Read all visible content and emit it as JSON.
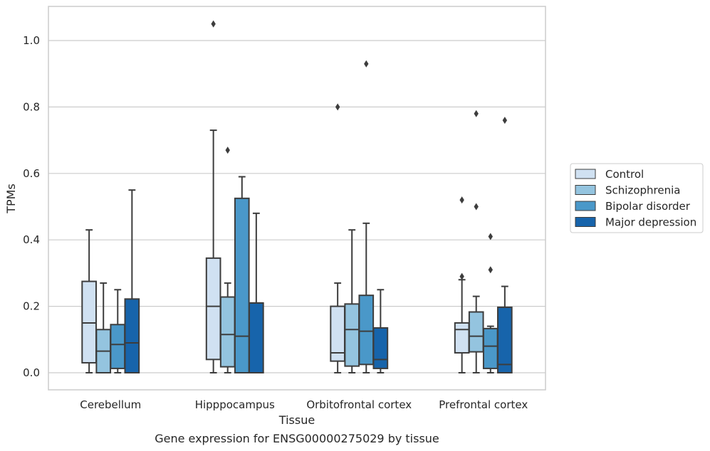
{
  "caption": "Gene expression for ENSG00000275029 by tissue",
  "chart_data": {
    "type": "boxplot",
    "xlabel": "Tissue",
    "ylabel": "TPMs",
    "ylim": [
      -0.05,
      1.1
    ],
    "yticks": [
      0.0,
      0.2,
      0.4,
      0.6,
      0.8,
      1.0
    ],
    "ytick_labels": [
      "0.0",
      "0.2",
      "0.4",
      "0.6",
      "0.8",
      "1.0"
    ],
    "grid": "horizontal",
    "legend_position": "right",
    "categories": [
      "Cerebellum",
      "Hipppocampus",
      "Orbitofrontal cortex",
      "Prefrontal cortex"
    ],
    "series": [
      {
        "name": "Control",
        "color": "#d0e1f2",
        "boxes": [
          {
            "whislo": 0.0,
            "q1": 0.03,
            "med": 0.15,
            "q3": 0.275,
            "whishi": 0.43,
            "fliers": []
          },
          {
            "whislo": 0.0,
            "q1": 0.04,
            "med": 0.2,
            "q3": 0.345,
            "whishi": 0.73,
            "fliers": [
              1.05
            ]
          },
          {
            "whislo": 0.0,
            "q1": 0.035,
            "med": 0.06,
            "q3": 0.2,
            "whishi": 0.27,
            "fliers": [
              0.8
            ]
          },
          {
            "whislo": 0.0,
            "q1": 0.06,
            "med": 0.13,
            "q3": 0.15,
            "whishi": 0.28,
            "fliers": [
              0.29,
              0.52
            ]
          }
        ]
      },
      {
        "name": "Schizophrenia",
        "color": "#94c4df",
        "boxes": [
          {
            "whislo": 0.0,
            "q1": 0.0,
            "med": 0.065,
            "q3": 0.13,
            "whishi": 0.27,
            "fliers": []
          },
          {
            "whislo": 0.0,
            "q1": 0.018,
            "med": 0.115,
            "q3": 0.228,
            "whishi": 0.27,
            "fliers": [
              0.67
            ]
          },
          {
            "whislo": 0.0,
            "q1": 0.02,
            "med": 0.13,
            "q3": 0.207,
            "whishi": 0.43,
            "fliers": []
          },
          {
            "whislo": 0.0,
            "q1": 0.063,
            "med": 0.11,
            "q3": 0.183,
            "whishi": 0.23,
            "fliers": [
              0.5,
              0.78
            ]
          }
        ]
      },
      {
        "name": "Bipolar disorder",
        "color": "#4a98c9",
        "boxes": [
          {
            "whislo": 0.0,
            "q1": 0.013,
            "med": 0.085,
            "q3": 0.145,
            "whishi": 0.25,
            "fliers": []
          },
          {
            "whislo": 0.0,
            "q1": 0.0,
            "med": 0.11,
            "q3": 0.525,
            "whishi": 0.59,
            "fliers": []
          },
          {
            "whislo": 0.0,
            "q1": 0.025,
            "med": 0.125,
            "q3": 0.233,
            "whishi": 0.45,
            "fliers": [
              0.93
            ]
          },
          {
            "whislo": 0.0,
            "q1": 0.013,
            "med": 0.08,
            "q3": 0.133,
            "whishi": 0.14,
            "fliers": [
              0.31,
              0.41
            ]
          }
        ]
      },
      {
        "name": "Major depression",
        "color": "#1764ab",
        "boxes": [
          {
            "whislo": 0.0,
            "q1": 0.0,
            "med": 0.09,
            "q3": 0.222,
            "whishi": 0.55,
            "fliers": []
          },
          {
            "whislo": 0.0,
            "q1": 0.0,
            "med": 0.21,
            "q3": 0.21,
            "whishi": 0.48,
            "fliers": []
          },
          {
            "whislo": 0.0,
            "q1": 0.013,
            "med": 0.04,
            "q3": 0.135,
            "whishi": 0.25,
            "fliers": []
          },
          {
            "whislo": 0.0,
            "q1": 0.0,
            "med": 0.025,
            "q3": 0.197,
            "whishi": 0.26,
            "fliers": [
              0.76
            ]
          }
        ]
      }
    ]
  }
}
